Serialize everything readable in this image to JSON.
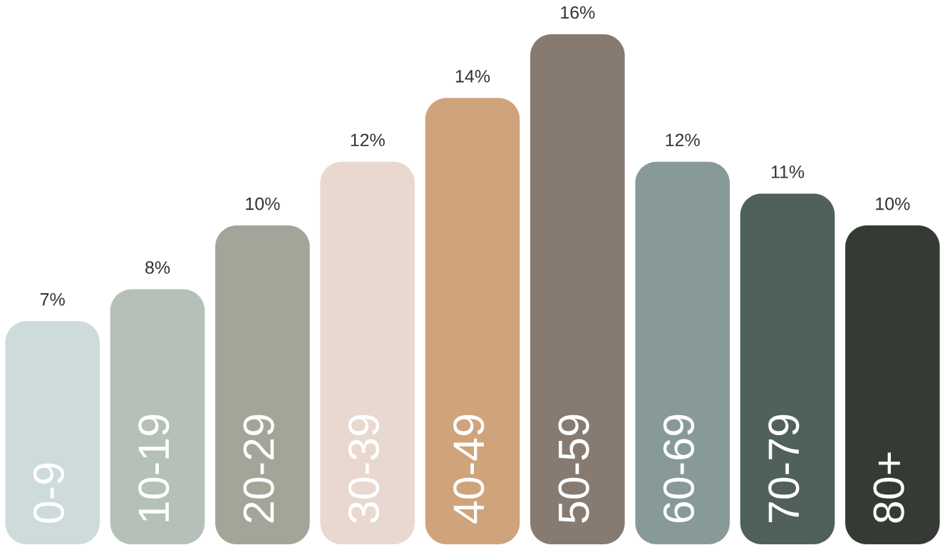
{
  "chart_data": {
    "type": "bar",
    "categories": [
      "0-9",
      "10-19",
      "20-29",
      "30-39",
      "40-49",
      "50-59",
      "60-69",
      "70-79",
      "80+"
    ],
    "values": [
      7,
      8,
      10,
      12,
      14,
      16,
      12,
      11,
      10
    ],
    "colors": [
      "#cddcdb",
      "#b4c0b8",
      "#a3a598",
      "#e8d8cf",
      "#cfa37b",
      "#877a70",
      "#889a97",
      "#50605b",
      "#363a34"
    ],
    "value_labels": [
      "7%",
      "8%",
      "10%",
      "12%",
      "14%",
      "16%",
      "12%",
      "11%",
      "10%"
    ],
    "tick_labels": "x"
  }
}
